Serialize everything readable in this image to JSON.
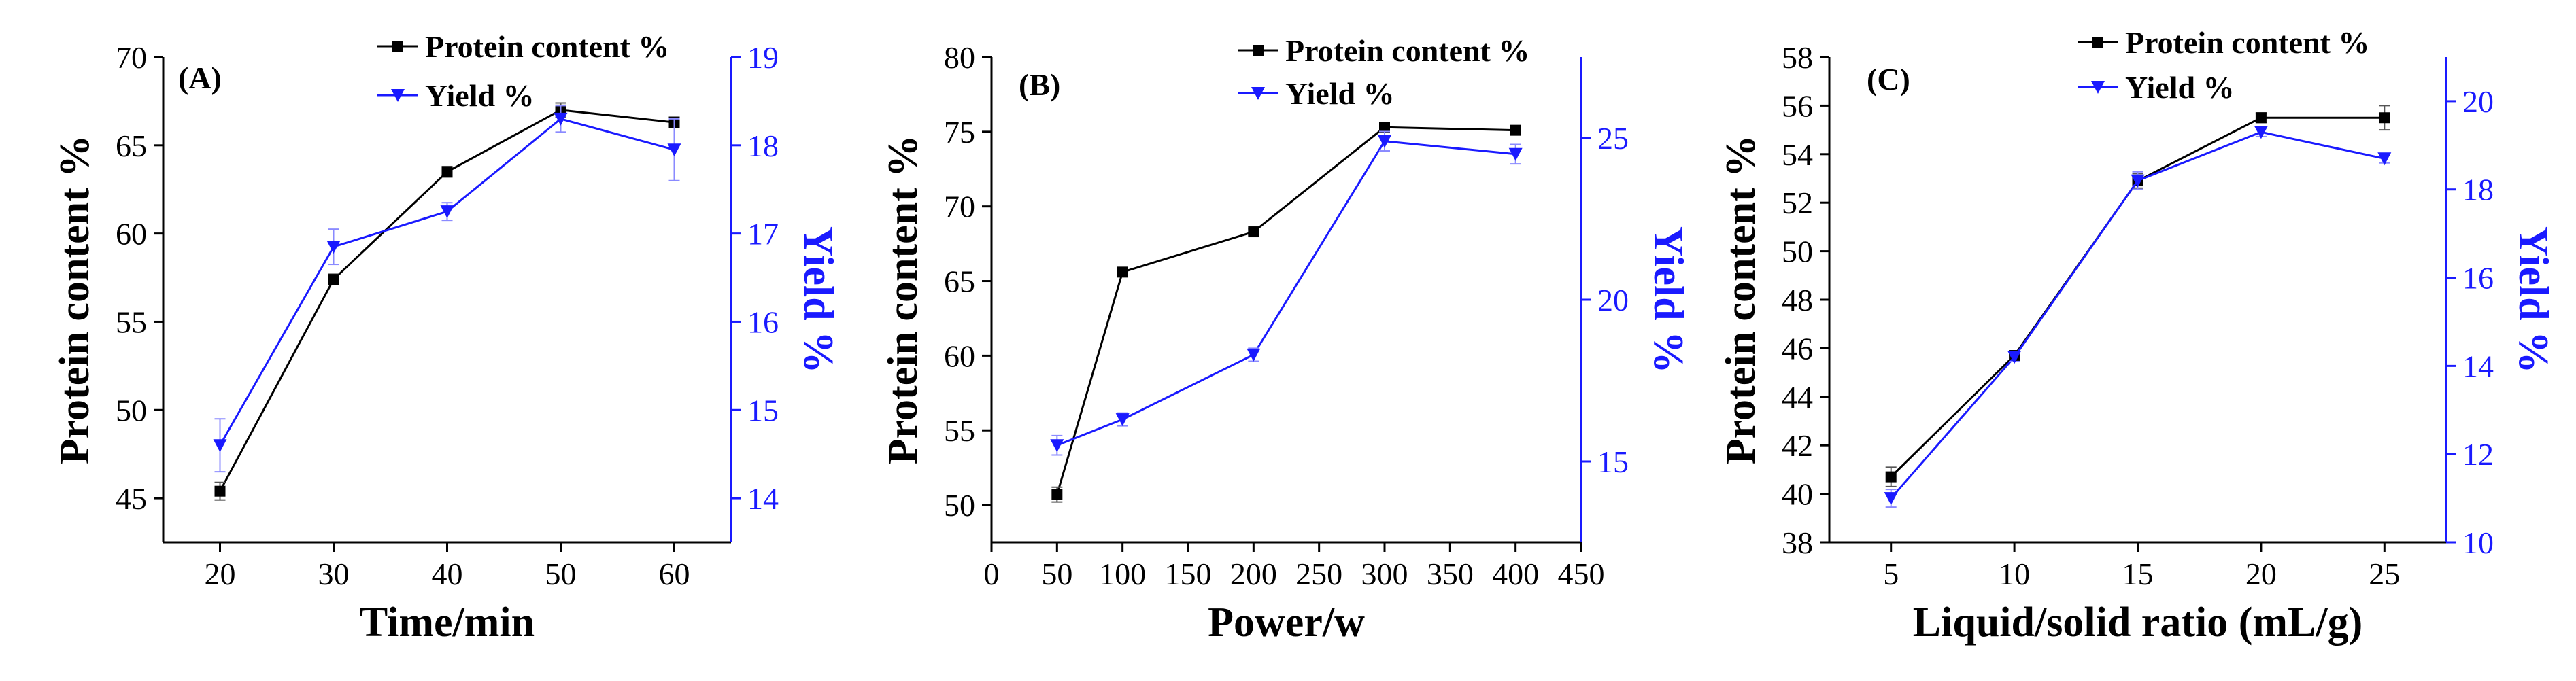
{
  "colors": {
    "protein": "#000000",
    "yield": "#1a1aff",
    "axis": "#000000",
    "yield_axis": "#1a1aff"
  },
  "chart_data": [
    {
      "type": "line",
      "panel_label": "(A)",
      "xlabel": "Time/min",
      "ylabel_left": "Protein content %",
      "ylabel_right": "Yield %",
      "xlim": [
        15,
        65
      ],
      "x_ticks": [
        20,
        30,
        40,
        50,
        60
      ],
      "x_tick_labels": [
        "20",
        "30",
        "40",
        "50",
        "60"
      ],
      "ylim_left": [
        42.5,
        70
      ],
      "y_ticks_left": [
        45,
        50,
        55,
        60,
        65,
        70
      ],
      "y_tick_labels_left": [
        "45",
        "50",
        "55",
        "60",
        "65",
        "70"
      ],
      "ylim_right": [
        13.5,
        19
      ],
      "y_ticks_right": [
        14,
        15,
        16,
        17,
        18,
        19
      ],
      "y_tick_labels_right": [
        "14",
        "15",
        "16",
        "17",
        "18",
        "19"
      ],
      "series": [
        {
          "name": "Protein content %",
          "axis": "left",
          "marker": "square",
          "x": [
            20,
            30,
            40,
            50,
            60
          ],
          "values": [
            45.4,
            57.4,
            63.5,
            67.0,
            66.3
          ],
          "errors": [
            0.5,
            0.3,
            0.3,
            0.4,
            0.3
          ]
        },
        {
          "name": "Yield %",
          "axis": "right",
          "marker": "triangle-down",
          "x": [
            20,
            30,
            40,
            50,
            60
          ],
          "values": [
            14.6,
            16.85,
            17.25,
            18.3,
            17.95
          ],
          "errors": [
            0.3,
            0.2,
            0.1,
            0.15,
            0.35
          ]
        }
      ]
    },
    {
      "type": "line",
      "panel_label": "(B)",
      "xlabel": "Power/w",
      "ylabel_left": "Protein content %",
      "ylabel_right": "Yield %",
      "xlim": [
        0,
        450
      ],
      "x_ticks": [
        0,
        50,
        100,
        150,
        200,
        250,
        300,
        350,
        400,
        450
      ],
      "x_tick_labels": [
        "0",
        "50",
        "100",
        "150",
        "200",
        "250",
        "300",
        "350",
        "400",
        "450"
      ],
      "ylim_left": [
        47.5,
        80
      ],
      "y_ticks_left": [
        50,
        55,
        60,
        65,
        70,
        75,
        80
      ],
      "y_tick_labels_left": [
        "50",
        "55",
        "60",
        "65",
        "70",
        "75",
        "80"
      ],
      "ylim_right": [
        12.5,
        27.5
      ],
      "y_ticks_right": [
        15,
        20,
        25
      ],
      "y_tick_labels_right": [
        "15",
        "20",
        "25"
      ],
      "series": [
        {
          "name": "Protein content %",
          "axis": "left",
          "marker": "square",
          "x": [
            50,
            100,
            200,
            300,
            400
          ],
          "values": [
            50.7,
            65.6,
            68.3,
            75.3,
            75.1
          ],
          "errors": [
            0.5,
            0.3,
            0.2,
            0.2,
            0.2
          ]
        },
        {
          "name": "Yield %",
          "axis": "right",
          "marker": "triangle-down",
          "x": [
            50,
            100,
            200,
            300,
            400
          ],
          "values": [
            15.5,
            16.3,
            18.3,
            24.9,
            24.5
          ],
          "errors": [
            0.3,
            0.2,
            0.2,
            0.3,
            0.3
          ]
        }
      ]
    },
    {
      "type": "line",
      "panel_label": "(C)",
      "xlabel": "Liquid/solid ratio (mL/g)",
      "ylabel_left": "Protein content %",
      "ylabel_right": "Yield %",
      "xlim": [
        2.5,
        27.5
      ],
      "x_ticks": [
        5,
        10,
        15,
        20,
        25
      ],
      "x_tick_labels": [
        "5",
        "10",
        "15",
        "20",
        "25"
      ],
      "ylim_left": [
        38,
        58
      ],
      "y_ticks_left": [
        38,
        40,
        42,
        44,
        46,
        48,
        50,
        52,
        54,
        56,
        58
      ],
      "y_tick_labels_left": [
        "38",
        "40",
        "42",
        "44",
        "46",
        "48",
        "50",
        "52",
        "54",
        "56",
        "58"
      ],
      "ylim_right": [
        10,
        21
      ],
      "y_ticks_right": [
        10,
        12,
        14,
        16,
        18,
        20
      ],
      "y_tick_labels_right": [
        "10",
        "12",
        "14",
        "16",
        "18",
        "20"
      ],
      "series": [
        {
          "name": "Protein content %",
          "axis": "left",
          "marker": "square",
          "x": [
            5,
            10,
            15,
            20,
            25
          ],
          "values": [
            40.7,
            45.7,
            52.9,
            55.5,
            55.5
          ],
          "errors": [
            0.4,
            0.2,
            0.3,
            0.2,
            0.5
          ]
        },
        {
          "name": "Yield %",
          "axis": "right",
          "marker": "triangle-down",
          "x": [
            5,
            10,
            15,
            20,
            25
          ],
          "values": [
            11.0,
            14.2,
            18.2,
            19.3,
            18.7
          ],
          "errors": [
            0.2,
            0.1,
            0.2,
            0.1,
            0.1
          ]
        }
      ]
    }
  ]
}
